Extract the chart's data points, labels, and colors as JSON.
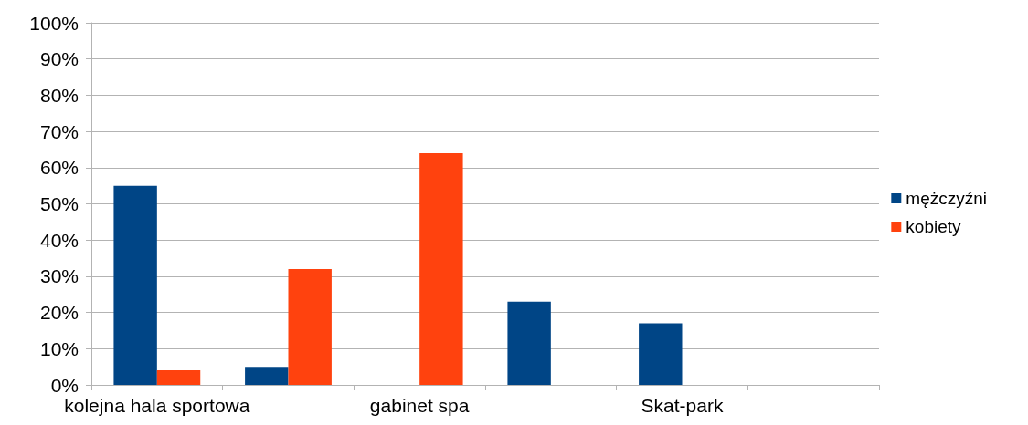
{
  "chart_data": {
    "type": "bar",
    "categories": [
      "kolejna hala sportowa",
      null,
      "gabinet spa",
      null,
      "Skat-park",
      null
    ],
    "series": [
      {
        "name": "mężczyźni",
        "color": "#004586",
        "values": [
          55,
          5,
          0,
          23,
          17,
          0
        ]
      },
      {
        "name": "kobiety",
        "color": "#ff420e",
        "values": [
          4,
          32,
          64,
          0,
          0,
          0
        ]
      }
    ],
    "ylim": [
      0,
      100
    ],
    "yticks": [
      {
        "value": 0,
        "label": "0%"
      },
      {
        "value": 10,
        "label": "10%"
      },
      {
        "value": 20,
        "label": "20%"
      },
      {
        "value": 30,
        "label": "30%"
      },
      {
        "value": 40,
        "label": "40%"
      },
      {
        "value": 50,
        "label": "50%"
      },
      {
        "value": 60,
        "label": "60%"
      },
      {
        "value": 70,
        "label": "70%"
      },
      {
        "value": 80,
        "label": "80%"
      },
      {
        "value": 90,
        "label": "90%"
      },
      {
        "value": 100,
        "label": "100%"
      }
    ],
    "grid": "y",
    "legend": "right"
  }
}
